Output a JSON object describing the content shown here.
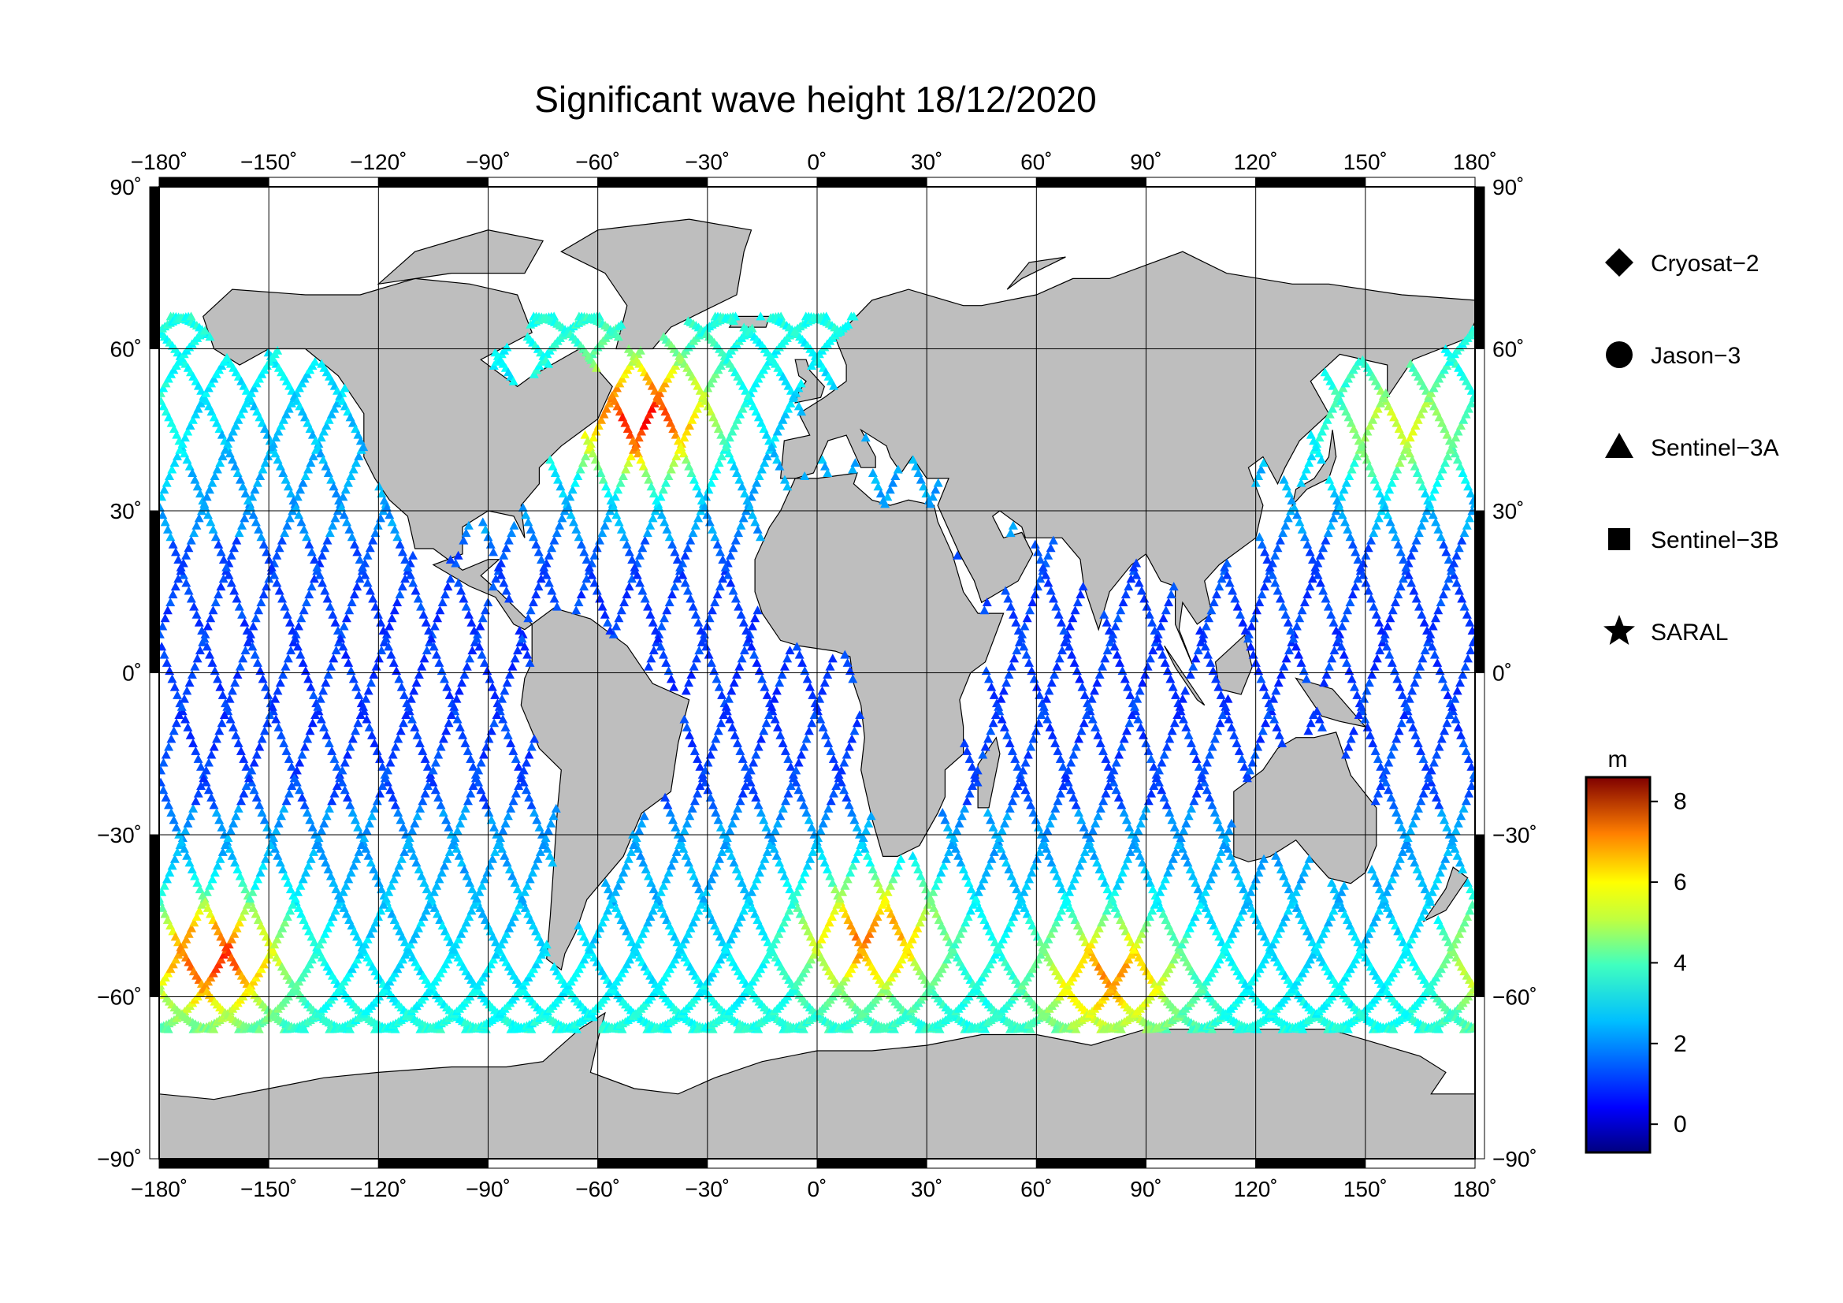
{
  "title": "Significant wave height 18/12/2020",
  "map": {
    "projection": "equirectangular",
    "lon_range": [
      -180,
      180
    ],
    "lat_range": [
      -90,
      90
    ],
    "lon_ticks": [
      "−180˚",
      "−150˚",
      "−120˚",
      "−90˚",
      "−60˚",
      "−30˚",
      "0˚",
      "30˚",
      "60˚",
      "90˚",
      "120˚",
      "150˚",
      "180˚"
    ],
    "lat_ticks": [
      "90˚",
      "60˚",
      "30˚",
      "0˚",
      "−30˚",
      "−60˚",
      "−90˚"
    ],
    "grid": true,
    "colors": {
      "land": "#bebebe",
      "ocean": "#ffffff",
      "grid": "#000000"
    }
  },
  "legend": {
    "placement": "right",
    "items": [
      {
        "label": "Cryosat−2",
        "symbol": "diamond"
      },
      {
        "label": "Jason−3",
        "symbol": "circle"
      },
      {
        "label": "Sentinel−3A",
        "symbol": "triangle"
      },
      {
        "label": "Sentinel−3B",
        "symbol": "square"
      },
      {
        "label": "SARAL",
        "symbol": "star"
      }
    ]
  },
  "colorbar": {
    "unit": "m",
    "range": [
      -0.7,
      8.6
    ],
    "ticks": [
      "0",
      "2",
      "4",
      "6",
      "8"
    ],
    "colormap": "jet"
  },
  "tracks_note": "",
  "high_wave_regions": [
    {
      "lon": -48,
      "lat": 47,
      "value_m": 7.5
    },
    {
      "lon": -165,
      "lat": -52,
      "value_m": 7.0
    },
    {
      "lon": 15,
      "lat": -48,
      "value_m": 6.5
    },
    {
      "lon": 80,
      "lat": -55,
      "value_m": 6.0
    },
    {
      "lon": 160,
      "lat": 45,
      "value_m": 5.0
    }
  ]
}
